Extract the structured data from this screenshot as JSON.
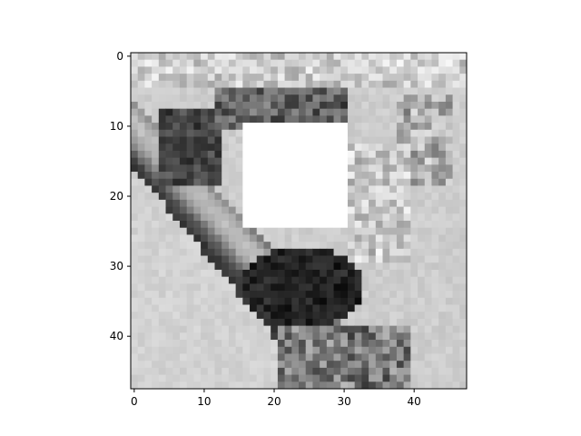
{
  "chart_data": {
    "type": "heatmap",
    "colormap": "gray",
    "image_size": [
      48,
      48
    ],
    "masked_region": {
      "x_start": 15.5,
      "x_end": 30.5,
      "y_start": 9.5,
      "y_end": 24.5,
      "color": "#ffffff"
    },
    "xlim": [
      -0.5,
      47.5
    ],
    "ylim": [
      47.5,
      -0.5
    ],
    "xticks": [
      0,
      10,
      20,
      30,
      40
    ],
    "yticks": [
      0,
      10,
      20,
      30,
      40
    ],
    "xtick_labels": [
      "0",
      "10",
      "20",
      "30",
      "40"
    ],
    "ytick_labels": [
      "0",
      "10",
      "20",
      "30",
      "40"
    ],
    "grid": false
  }
}
